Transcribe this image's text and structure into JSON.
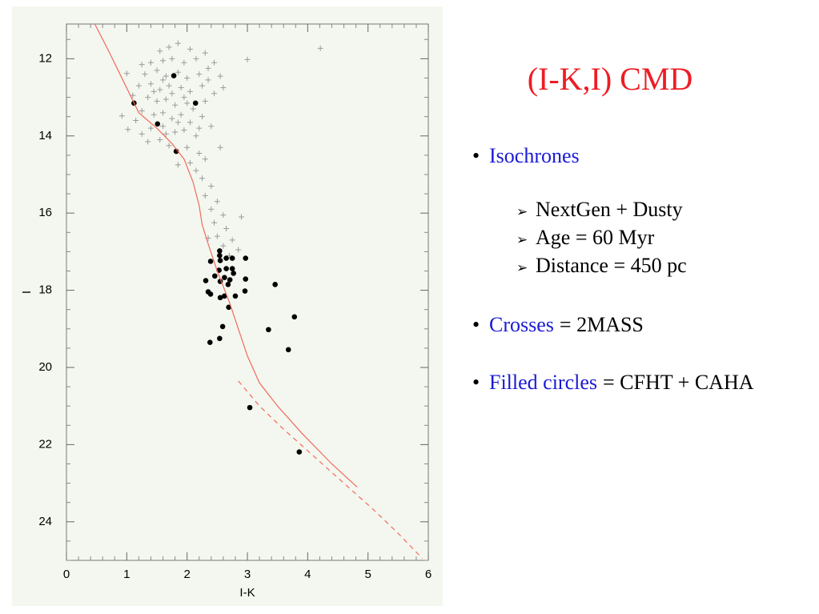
{
  "chart_data": {
    "type": "scatter",
    "xlabel": "I-K",
    "ylabel": "I",
    "xlim": [
      0,
      6
    ],
    "xticks": [
      0,
      1,
      2,
      3,
      4,
      5,
      6
    ],
    "ylim": [
      11.1,
      25
    ],
    "y_inverted": true,
    "yticks": [
      12,
      14,
      16,
      18,
      20,
      22,
      24
    ],
    "series": [
      {
        "style": "cross",
        "color": "#9a9a9a",
        "x": [
          4.21,
          3.0,
          1.0,
          0.92,
          1.02,
          1.55,
          1.7,
          1.85,
          2.05,
          2.3,
          1.4,
          1.6,
          1.75,
          1.95,
          2.15,
          2.45,
          1.3,
          1.5,
          1.65,
          1.85,
          2.0,
          2.2,
          2.35,
          2.55,
          1.2,
          1.4,
          1.55,
          1.7,
          1.9,
          2.05,
          2.25,
          2.45,
          1.35,
          1.5,
          1.65,
          1.8,
          1.95,
          2.1,
          2.3,
          1.25,
          1.45,
          1.6,
          1.75,
          1.9,
          2.05,
          2.25,
          1.4,
          1.6,
          1.8,
          1.95,
          2.15,
          1.35,
          1.55,
          1.7,
          2.0,
          2.2,
          1.25,
          1.15,
          1.1,
          2.4,
          2.05,
          2.15,
          2.3,
          2.25,
          2.4,
          2.3,
          2.5,
          2.4,
          2.6,
          2.45,
          2.65,
          2.5,
          2.75,
          2.6,
          2.85,
          2.9,
          2.7,
          2.35,
          1.85,
          2.55,
          1.6,
          1.75,
          2.0,
          1.45,
          1.85,
          2.35,
          1.25,
          2.6,
          1.65,
          2.2
        ],
        "values": [
          11.73,
          12.02,
          12.38,
          13.48,
          13.83,
          11.8,
          11.7,
          11.6,
          11.75,
          11.85,
          12.1,
          12.05,
          12.0,
          12.1,
          12.0,
          12.1,
          12.4,
          12.3,
          12.45,
          12.35,
          12.5,
          12.4,
          12.55,
          12.45,
          12.7,
          12.65,
          12.8,
          12.7,
          12.75,
          12.85,
          12.7,
          12.9,
          13.0,
          13.1,
          13.05,
          13.2,
          13.0,
          13.3,
          13.1,
          13.35,
          13.45,
          13.4,
          13.55,
          13.45,
          13.65,
          13.5,
          13.8,
          13.75,
          13.9,
          13.85,
          14.0,
          14.15,
          14.1,
          14.25,
          14.3,
          14.45,
          13.95,
          13.6,
          12.95,
          13.75,
          14.7,
          14.9,
          14.6,
          15.1,
          15.3,
          15.55,
          15.7,
          15.9,
          16.05,
          16.25,
          16.4,
          16.6,
          16.7,
          16.85,
          16.95,
          16.1,
          17.1,
          16.65,
          14.75,
          14.3,
          12.55,
          12.9,
          13.15,
          12.85,
          13.65,
          12.25,
          12.15,
          12.75,
          13.95,
          13.8
        ]
      },
      {
        "style": "circle",
        "color": "#000000",
        "x": [
          1.78,
          1.12,
          2.14,
          1.51,
          1.82,
          2.54,
          2.54,
          2.39,
          2.55,
          2.65,
          2.75,
          2.97,
          2.53,
          2.65,
          2.75,
          2.46,
          2.62,
          2.71,
          2.31,
          2.97,
          2.77,
          2.55,
          3.46,
          2.68,
          2.35,
          2.96,
          2.39,
          2.62,
          2.8,
          2.55,
          2.69,
          3.78,
          2.59,
          3.35,
          2.38,
          2.54,
          3.68,
          3.04,
          3.86
        ],
        "values": [
          12.44,
          13.15,
          13.15,
          13.69,
          14.4,
          16.98,
          17.1,
          17.25,
          17.23,
          17.17,
          17.17,
          17.17,
          17.48,
          17.44,
          17.44,
          17.63,
          17.67,
          17.73,
          17.75,
          17.71,
          17.56,
          17.77,
          17.85,
          17.85,
          18.04,
          18.02,
          18.1,
          18.15,
          18.15,
          18.19,
          18.44,
          18.69,
          18.94,
          19.02,
          19.35,
          19.25,
          19.54,
          21.04,
          22.19
        ]
      },
      {
        "style": "line",
        "color": "#f06a5c",
        "x": [
          0.47,
          0.7,
          0.95,
          1.2,
          1.5,
          1.75,
          1.95,
          2.1,
          2.2,
          2.25,
          2.35,
          2.5,
          2.7,
          2.85,
          3.0,
          3.2,
          3.5,
          3.9,
          4.4,
          4.82
        ],
        "values": [
          11.1,
          11.8,
          12.6,
          13.4,
          13.8,
          14.2,
          14.6,
          15.2,
          15.8,
          16.3,
          16.8,
          17.5,
          18.3,
          19.0,
          19.7,
          20.4,
          21.0,
          21.7,
          22.5,
          23.1
        ]
      },
      {
        "style": "dashed-line",
        "color": "#f06a5c",
        "x": [
          2.85,
          3.2,
          3.6,
          4.1,
          4.6,
          5.1,
          5.5,
          5.9
        ],
        "values": [
          20.35,
          21.0,
          21.6,
          22.3,
          23.0,
          23.7,
          24.3,
          24.95
        ]
      }
    ]
  },
  "slide": {
    "title": "(I-K,I) CMD",
    "bullets": [
      {
        "label": "Isochrones",
        "sub": [
          "NextGen + Dusty",
          "Age = 60 Myr",
          "Distance = 450 pc"
        ]
      },
      {
        "label": "Crosses",
        "text": "= 2MASS"
      },
      {
        "label": "Filled circles",
        "text": "= CFHT + CAHA"
      }
    ]
  }
}
